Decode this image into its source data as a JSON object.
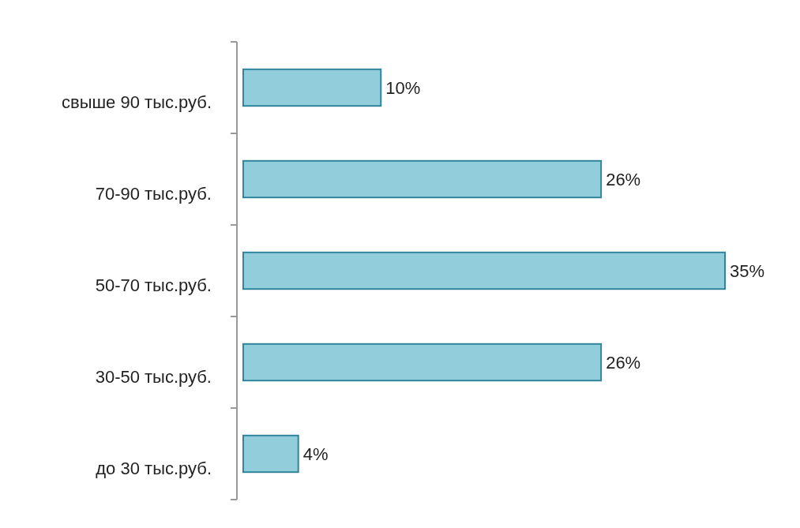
{
  "chart_data": {
    "type": "bar",
    "orientation": "horizontal",
    "categories": [
      "свыше 90 тыс.руб.",
      "70-90 тыс.руб.",
      "50-70 тыс.руб.",
      "30-50 тыс.руб.",
      "до 30 тыс.руб."
    ],
    "values": [
      10,
      26,
      35,
      26,
      4
    ],
    "color": "#92cddc",
    "data_labels": true,
    "value_labels": [
      "10%",
      "26%",
      "35%",
      "26%",
      "4%"
    ]
  }
}
